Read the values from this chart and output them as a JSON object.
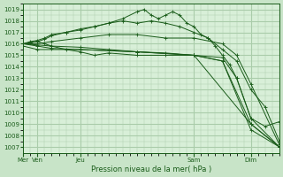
{
  "bg_color": "#c8e4c8",
  "plot_bg_color": "#d8efd8",
  "grid_color": "#aaccaa",
  "line_color": "#1a5c1a",
  "marker_color": "#1a5c1a",
  "ylabel_ticks": [
    1007,
    1008,
    1009,
    1010,
    1011,
    1012,
    1013,
    1014,
    1015,
    1016,
    1017,
    1018,
    1019
  ],
  "ylim": [
    1006.5,
    1019.5
  ],
  "xlabel": "Pression niveau de la mer( hPa )",
  "x_day_ticks": [
    0,
    12,
    48,
    144,
    192
  ],
  "x_day_labels": [
    "Mer",
    "Ven",
    "Jeu",
    "Sam",
    "Dim"
  ],
  "xlim": [
    0,
    216
  ],
  "lines": [
    {
      "x": [
        0,
        6,
        12,
        18,
        24,
        36,
        48,
        60,
        72,
        84,
        96,
        102,
        108,
        114,
        120,
        126,
        132,
        138,
        144,
        150,
        156,
        162,
        168,
        174,
        180,
        192,
        204,
        216
      ],
      "y": [
        1016.0,
        1016.2,
        1016.3,
        1016.5,
        1016.8,
        1017.0,
        1017.3,
        1017.5,
        1017.8,
        1018.2,
        1018.8,
        1019.0,
        1018.5,
        1018.2,
        1018.5,
        1018.8,
        1018.5,
        1017.8,
        1017.5,
        1016.8,
        1016.5,
        1015.8,
        1015.0,
        1014.2,
        1013.0,
        1009.5,
        1008.8,
        1009.2
      ]
    },
    {
      "x": [
        0,
        6,
        12,
        18,
        24,
        36,
        48,
        60,
        72,
        84,
        96,
        108,
        120,
        132,
        144,
        156,
        168,
        180,
        192,
        204,
        216
      ],
      "y": [
        1016.0,
        1016.1,
        1016.2,
        1016.4,
        1016.7,
        1017.0,
        1017.2,
        1017.5,
        1017.8,
        1018.0,
        1017.8,
        1018.0,
        1017.8,
        1017.5,
        1017.0,
        1016.5,
        1015.5,
        1014.5,
        1012.0,
        1010.5,
        1007.5
      ]
    },
    {
      "x": [
        0,
        12,
        24,
        48,
        72,
        96,
        120,
        144,
        168,
        180,
        192,
        216
      ],
      "y": [
        1016.0,
        1016.0,
        1016.2,
        1016.5,
        1016.8,
        1016.8,
        1016.5,
        1016.5,
        1016.0,
        1015.0,
        1012.5,
        1007.2
      ]
    },
    {
      "x": [
        0,
        12,
        24,
        48,
        72,
        96,
        120,
        144,
        168,
        180,
        192,
        216
      ],
      "y": [
        1016.0,
        1015.9,
        1015.8,
        1015.7,
        1015.5,
        1015.3,
        1015.2,
        1015.0,
        1014.8,
        1013.0,
        1009.5,
        1007.0
      ]
    },
    {
      "x": [
        0,
        12,
        24,
        48,
        96,
        144,
        168,
        192,
        216
      ],
      "y": [
        1016.0,
        1015.8,
        1015.6,
        1015.5,
        1015.3,
        1015.0,
        1014.5,
        1009.0,
        1007.0
      ]
    },
    {
      "x": [
        0,
        12,
        48,
        96,
        144,
        192,
        216
      ],
      "y": [
        1015.8,
        1015.5,
        1015.5,
        1015.3,
        1015.0,
        1009.0,
        1007.0
      ]
    },
    {
      "x": [
        0,
        6,
        12,
        18,
        24,
        36,
        48,
        60,
        72,
        96,
        120,
        144,
        168,
        192,
        216
      ],
      "y": [
        1016.0,
        1016.1,
        1016.2,
        1016.0,
        1015.8,
        1015.5,
        1015.3,
        1015.0,
        1015.2,
        1015.0,
        1015.0,
        1015.0,
        1014.5,
        1008.5,
        1007.0
      ]
    }
  ]
}
